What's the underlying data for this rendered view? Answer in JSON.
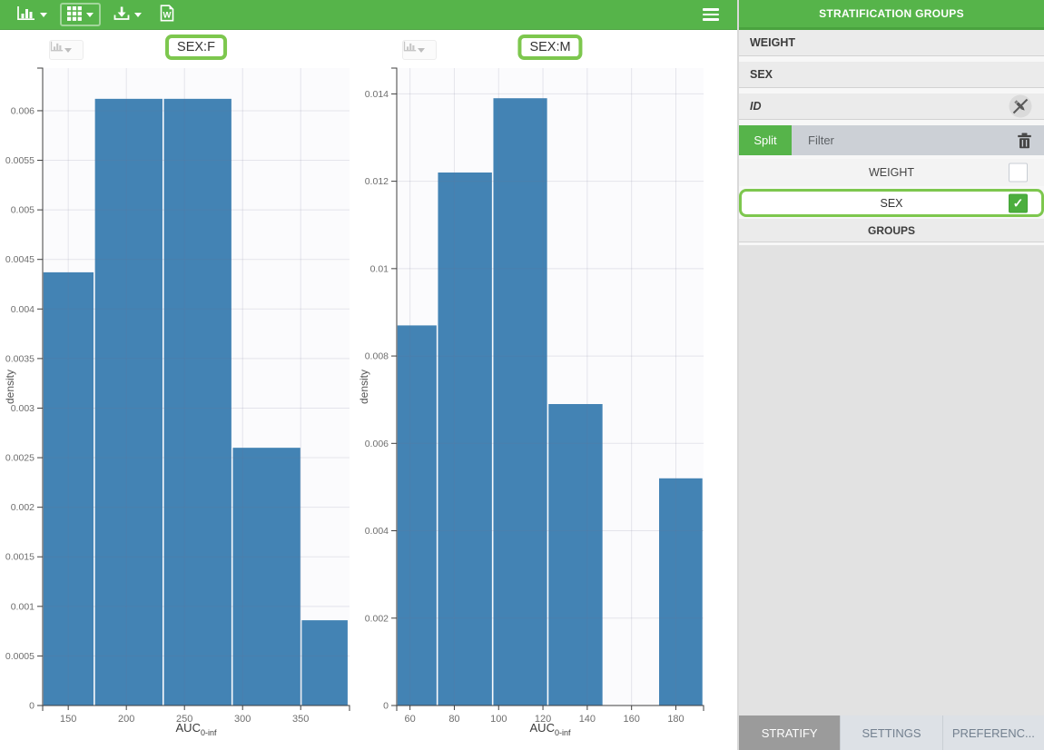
{
  "toolbar": {
    "buttons": [
      {
        "icon": "bar-chart-icon",
        "has_caret": true,
        "active": false
      },
      {
        "icon": "grid-icon",
        "has_caret": true,
        "active": true
      },
      {
        "icon": "download-icon",
        "has_caret": true,
        "active": false
      },
      {
        "icon": "word-export-icon",
        "has_caret": false,
        "active": false
      }
    ],
    "menu_icon": "hamburger-icon"
  },
  "chart_data": [
    {
      "type": "histogram",
      "title": "SEX:F",
      "xlabel": "AUC",
      "xlabel_subscript": "0-inf",
      "ylabel": "density",
      "x_range": [
        128,
        392
      ],
      "y_range": [
        0,
        0.00643
      ],
      "grid": true,
      "bar_color": "#4383b4",
      "x_ticks": [
        {
          "v": 150,
          "label": "150"
        },
        {
          "v": 200,
          "label": "200"
        },
        {
          "v": 250,
          "label": "250"
        },
        {
          "v": 300,
          "label": "300"
        },
        {
          "v": 350,
          "label": "350"
        }
      ],
      "y_ticks": [
        {
          "v": 0,
          "label": "0"
        },
        {
          "v": 0.0005,
          "label": "0.0005"
        },
        {
          "v": 0.001,
          "label": "0.001"
        },
        {
          "v": 0.0015,
          "label": "0.0015"
        },
        {
          "v": 0.002,
          "label": "0.002"
        },
        {
          "v": 0.0025,
          "label": "0.0025"
        },
        {
          "v": 0.003,
          "label": "0.003"
        },
        {
          "v": 0.0035,
          "label": "0.0035"
        },
        {
          "v": 0.004,
          "label": "0.004"
        },
        {
          "v": 0.0045,
          "label": "0.0045"
        },
        {
          "v": 0.005,
          "label": "0.005"
        },
        {
          "v": 0.0055,
          "label": "0.0055"
        },
        {
          "v": 0.006,
          "label": "0.006"
        }
      ],
      "bars": [
        {
          "x0": 128,
          "x1": 172.4,
          "h": 0.00437
        },
        {
          "x0": 172.4,
          "x1": 231.7,
          "h": 0.00612
        },
        {
          "x0": 231.7,
          "x1": 291.0,
          "h": 0.00612
        },
        {
          "x0": 291.0,
          "x1": 350.3,
          "h": 0.0026
        },
        {
          "x0": 350.3,
          "x1": 391.0,
          "h": 0.00086
        }
      ]
    },
    {
      "type": "histogram",
      "title": "SEX:M",
      "xlabel": "AUC",
      "xlabel_subscript": "0-inf",
      "ylabel": "density",
      "x_range": [
        54,
        192.5
      ],
      "y_range": [
        0,
        0.01459
      ],
      "grid": true,
      "bar_color": "#4383b4",
      "x_ticks": [
        {
          "v": 60,
          "label": "60"
        },
        {
          "v": 80,
          "label": "80"
        },
        {
          "v": 100,
          "label": "100"
        },
        {
          "v": 120,
          "label": "120"
        },
        {
          "v": 140,
          "label": "140"
        },
        {
          "v": 160,
          "label": "160"
        },
        {
          "v": 180,
          "label": "180"
        }
      ],
      "y_ticks": [
        {
          "v": 0,
          "label": "0"
        },
        {
          "v": 0.002,
          "label": "0.002"
        },
        {
          "v": 0.004,
          "label": "0.004"
        },
        {
          "v": 0.006,
          "label": "0.006"
        },
        {
          "v": 0.008,
          "label": "0.008"
        },
        {
          "v": 0.01,
          "label": "0.01"
        },
        {
          "v": 0.012,
          "label": "0.012"
        },
        {
          "v": 0.014,
          "label": "0.014"
        }
      ],
      "bars": [
        {
          "x0": 54,
          "x1": 72.3,
          "h": 0.0087
        },
        {
          "x0": 72.3,
          "x1": 97.3,
          "h": 0.0122
        },
        {
          "x0": 97.3,
          "x1": 122.2,
          "h": 0.0139
        },
        {
          "x0": 122.2,
          "x1": 147.2,
          "h": 0.0069
        },
        {
          "x0": 172.1,
          "x1": 192.3,
          "h": 0.0052
        }
      ]
    }
  ],
  "sidebar": {
    "title": "STRATIFICATION GROUPS",
    "covariates": [
      {
        "label": "WEIGHT"
      },
      {
        "label": "SEX"
      },
      {
        "label": "ID",
        "icon": "pencil-slash-icon"
      }
    ],
    "split_filter": {
      "split_label": "Split",
      "filter_label": "Filter",
      "delete_icon": "trash-icon"
    },
    "checkbox_rows": [
      {
        "label": "WEIGHT",
        "checked": false,
        "highlighted": false
      },
      {
        "label": "SEX",
        "checked": true,
        "highlighted": true
      }
    ],
    "groups_label": "GROUPS",
    "tabs": [
      {
        "label": "STRATIFY",
        "active": true
      },
      {
        "label": "SETTINGS",
        "active": false
      },
      {
        "label": "PREFERENC...",
        "active": false
      }
    ],
    "check_glyph": "✓"
  },
  "colors": {
    "toolbar_green": "#56b44a",
    "header_border_green": "#4aa33f",
    "highlight_green": "#7dc74e",
    "checkbox_green": "#4cae3e",
    "bar_blue": "#4383b4",
    "split_row_gray": "#ccd0d6",
    "active_tab_gray": "#9b9b9b"
  }
}
